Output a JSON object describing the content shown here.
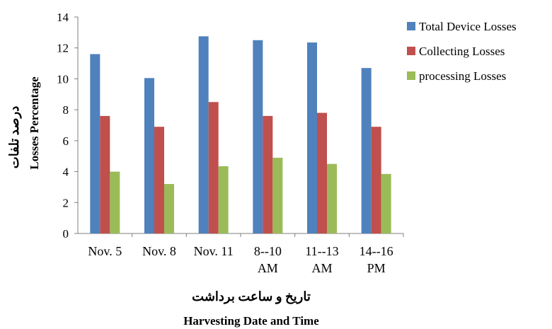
{
  "chart_data": {
    "type": "bar",
    "categories": [
      [
        "Nov. 5"
      ],
      [
        "Nov. 8"
      ],
      [
        "Nov. 11"
      ],
      [
        "8--10",
        "AM"
      ],
      [
        "11--13",
        "AM"
      ],
      [
        "14--16",
        "PM"
      ]
    ],
    "series": [
      {
        "name": "Total Device Losses",
        "color": "#4F81BD",
        "values": [
          11.6,
          10.05,
          12.75,
          12.5,
          12.35,
          10.7
        ]
      },
      {
        "name": "Collecting Losses",
        "color": "#C0504D",
        "values": [
          7.6,
          6.9,
          8.5,
          7.6,
          7.8,
          6.9
        ]
      },
      {
        "name": "processing Losses",
        "color": "#9BBB59",
        "values": [
          4.0,
          3.2,
          4.35,
          4.9,
          4.5,
          3.85
        ]
      }
    ],
    "ylim": [
      0,
      14
    ],
    "yticks": [
      0,
      2,
      4,
      6,
      8,
      10,
      12,
      14
    ],
    "ylabel_fa": "درصد تلفات",
    "ylabel_en": "Losses Percentage",
    "xlabel_fa": "تاریخ و ساعت برداشت",
    "xlabel_en": "Harvesting Date and Time",
    "legend_position": "top-right",
    "grid": false
  }
}
